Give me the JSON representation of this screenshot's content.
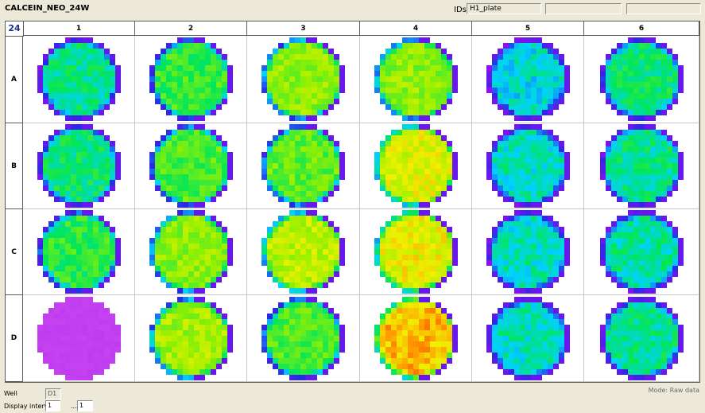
{
  "window": {
    "title": "CALCEIN_NEO_24W"
  },
  "ids": {
    "label": "IDs:",
    "value": "H1_plate",
    "value2": "",
    "value3": ""
  },
  "plate": {
    "well_count": "24",
    "columns": [
      "1",
      "2",
      "3",
      "4",
      "5",
      "6"
    ],
    "rows": [
      "A",
      "B",
      "C",
      "D"
    ]
  },
  "footer": {
    "well_label": "Well",
    "well_value": "D1",
    "display_intervals_label": "Display intervals:",
    "interval_from": "1",
    "interval_separator": "...",
    "interval_to": "1",
    "mode_text": "Mode: Raw data"
  },
  "wells": [
    {
      "id": "A1",
      "level": 0.3,
      "hotspots": []
    },
    {
      "id": "A2",
      "level": 0.42,
      "hotspots": []
    },
    {
      "id": "A3",
      "level": 0.55,
      "hotspots": []
    },
    {
      "id": "A4",
      "level": 0.55,
      "hotspots": []
    },
    {
      "id": "A5",
      "level": 0.22,
      "hotspots": []
    },
    {
      "id": "A6",
      "level": 0.33,
      "hotspots": []
    },
    {
      "id": "B1",
      "level": 0.33,
      "hotspots": []
    },
    {
      "id": "B2",
      "level": 0.45,
      "hotspots": []
    },
    {
      "id": "B3",
      "level": 0.48,
      "hotspots": []
    },
    {
      "id": "B4",
      "level": 0.68,
      "hotspots": []
    },
    {
      "id": "B5",
      "level": 0.25,
      "hotspots": []
    },
    {
      "id": "B6",
      "level": 0.3,
      "hotspots": []
    },
    {
      "id": "C1",
      "level": 0.4,
      "hotspots": []
    },
    {
      "id": "C2",
      "level": 0.55,
      "hotspots": []
    },
    {
      "id": "C3",
      "level": 0.62,
      "hotspots": []
    },
    {
      "id": "C4",
      "level": 0.7,
      "hotspots": []
    },
    {
      "id": "C5",
      "level": 0.25,
      "hotspots": []
    },
    {
      "id": "C6",
      "level": 0.28,
      "hotspots": []
    },
    {
      "id": "D1",
      "level": -1,
      "hotspots": []
    },
    {
      "id": "D2",
      "level": 0.58,
      "hotspots": []
    },
    {
      "id": "D3",
      "level": 0.45,
      "hotspots": []
    },
    {
      "id": "D4",
      "level": 0.8,
      "hotspots": []
    },
    {
      "id": "D5",
      "level": 0.25,
      "hotspots": []
    },
    {
      "id": "D6",
      "level": 0.3,
      "hotspots": []
    }
  ]
}
